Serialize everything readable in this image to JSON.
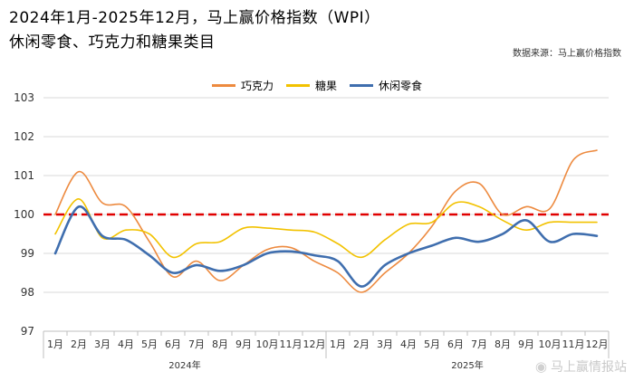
{
  "header": {
    "title": "2024年1月-2025年12月，马上赢价格指数（WPI）",
    "subtitle": "休闲零食、巧克力和糖果类目",
    "source": "数据来源：马上赢价格指数"
  },
  "watermark": {
    "text": "马上赢情报站"
  },
  "colors": {
    "chocolate": "#ED8A3F",
    "candy": "#F2C200",
    "snack": "#3F6EAE",
    "reference": "#E00000",
    "grid": "#d9d9d9"
  },
  "chart_data": {
    "type": "line",
    "categories": [
      "1月",
      "2月",
      "3月",
      "4月",
      "5月",
      "6月",
      "7月",
      "8月",
      "9月",
      "10月",
      "11月",
      "12月",
      "1月",
      "2月",
      "3月",
      "4月",
      "5月",
      "6月",
      "7月",
      "8月",
      "9月",
      "10月",
      "11月",
      "12月"
    ],
    "year_labels": [
      "2024年",
      "2025年"
    ],
    "ylim": [
      97,
      103
    ],
    "yticks": [
      97,
      98,
      99,
      100,
      101,
      102,
      103
    ],
    "reference_line": 100,
    "legend_position": "top-center",
    "grid": true,
    "series": [
      {
        "name": "巧克力",
        "key": "chocolate",
        "values": [
          100.0,
          101.1,
          100.3,
          100.2,
          99.3,
          98.4,
          98.8,
          98.3,
          98.7,
          99.1,
          99.15,
          98.8,
          98.5,
          98.0,
          98.5,
          99.0,
          99.7,
          100.6,
          100.8,
          100.0,
          100.2,
          100.15,
          101.4,
          101.65
        ]
      },
      {
        "name": "糖果",
        "key": "candy",
        "values": [
          99.5,
          100.4,
          99.4,
          99.6,
          99.5,
          98.9,
          99.25,
          99.3,
          99.65,
          99.65,
          99.6,
          99.55,
          99.25,
          98.9,
          99.35,
          99.75,
          99.8,
          100.3,
          100.2,
          99.85,
          99.6,
          99.8,
          99.8,
          99.8
        ]
      },
      {
        "name": "休闲零食",
        "key": "snack",
        "values": [
          99.0,
          100.2,
          99.45,
          99.35,
          98.95,
          98.5,
          98.7,
          98.55,
          98.7,
          99.0,
          99.05,
          98.95,
          98.8,
          98.15,
          98.7,
          99.0,
          99.2,
          99.4,
          99.3,
          99.5,
          99.85,
          99.3,
          99.5,
          99.45
        ]
      }
    ]
  }
}
